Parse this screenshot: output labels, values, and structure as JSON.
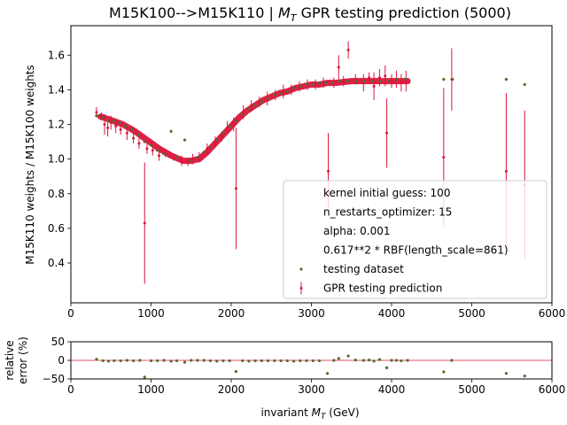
{
  "chart_data": [
    {
      "type": "scatter",
      "panel": "main",
      "title_main": "M15K100-->M15K110 | ",
      "title_math": "M",
      "title_sub": "T",
      "title_tail": " GPR testing prediction (5000)",
      "xlabel": "",
      "ylabel": "M15K110 weights / M15K100 weights",
      "xlim": [
        0,
        6000
      ],
      "ylim": [
        0.17,
        1.77
      ],
      "xticks": [
        0,
        1000,
        2000,
        3000,
        4000,
        5000,
        6000
      ],
      "xtick_labels": [
        "0",
        "1000",
        "2000",
        "3000",
        "4000",
        "5000",
        "6000"
      ],
      "yticks": [
        0.4,
        0.6,
        0.8,
        1.0,
        1.2,
        1.4,
        1.6
      ],
      "ytick_labels": [
        "0.4",
        "0.6",
        "0.8",
        "1.0",
        "1.2",
        "1.4",
        "1.6"
      ],
      "grid": false,
      "legend_position": "lower right",
      "legend": [
        {
          "kind": "text",
          "label": "kernel initial guess: 100"
        },
        {
          "kind": "text",
          "label": "n_restarts_optimizer: 15"
        },
        {
          "kind": "text",
          "label": "alpha: 0.001"
        },
        {
          "kind": "text",
          "label": "0.617**2 * RBF(length_scale=861)"
        },
        {
          "kind": "dot",
          "label": "testing dataset"
        },
        {
          "kind": "errorbar",
          "label": "GPR testing prediction"
        }
      ],
      "series": [
        {
          "name": "GPR testing prediction",
          "color": "#dc143c",
          "style": "errorbar",
          "points": [
            [
              320,
              1.27,
              0.03
            ],
            [
              380,
              1.25,
              0.02
            ],
            [
              420,
              1.2,
              0.06
            ],
            [
              460,
              1.18,
              0.05
            ],
            [
              500,
              1.21,
              0.04
            ],
            [
              560,
              1.19,
              0.04
            ],
            [
              620,
              1.17,
              0.03
            ],
            [
              700,
              1.15,
              0.04
            ],
            [
              780,
              1.12,
              0.03
            ],
            [
              850,
              1.09,
              0.03
            ],
            [
              920,
              0.63,
              0.35
            ],
            [
              950,
              1.06,
              0.03
            ],
            [
              1020,
              1.05,
              0.03
            ],
            [
              1100,
              1.02,
              0.03
            ],
            [
              1180,
              1.03,
              0.02
            ],
            [
              1280,
              1.01,
              0.02
            ],
            [
              1380,
              0.99,
              0.03
            ],
            [
              1460,
              0.98,
              0.02
            ],
            [
              1520,
              1.0,
              0.03
            ],
            [
              1600,
              1.01,
              0.03
            ],
            [
              1700,
              1.06,
              0.03
            ],
            [
              1800,
              1.1,
              0.03
            ],
            [
              1880,
              1.13,
              0.03
            ],
            [
              1950,
              1.18,
              0.04
            ],
            [
              2030,
              1.2,
              0.04
            ],
            [
              2060,
              0.83,
              0.35
            ],
            [
              2150,
              1.27,
              0.04
            ],
            [
              2250,
              1.31,
              0.03
            ],
            [
              2350,
              1.33,
              0.03
            ],
            [
              2450,
              1.35,
              0.04
            ],
            [
              2550,
              1.37,
              0.03
            ],
            [
              2650,
              1.39,
              0.04
            ],
            [
              2750,
              1.4,
              0.03
            ],
            [
              2850,
              1.42,
              0.03
            ],
            [
              2950,
              1.43,
              0.03
            ],
            [
              3050,
              1.43,
              0.03
            ],
            [
              3150,
              1.44,
              0.03
            ],
            [
              3210,
              0.93,
              0.22
            ],
            [
              3280,
              1.44,
              0.03
            ],
            [
              3340,
              1.53,
              0.07
            ],
            [
              3400,
              1.45,
              0.03
            ],
            [
              3460,
              1.63,
              0.05
            ],
            [
              3550,
              1.46,
              0.03
            ],
            [
              3650,
              1.44,
              0.05
            ],
            [
              3720,
              1.47,
              0.03
            ],
            [
              3780,
              1.42,
              0.08
            ],
            [
              3850,
              1.47,
              0.05
            ],
            [
              3920,
              1.48,
              0.06
            ],
            [
              3940,
              1.15,
              0.2
            ],
            [
              4000,
              1.45,
              0.04
            ],
            [
              4060,
              1.46,
              0.05
            ],
            [
              4120,
              1.44,
              0.05
            ],
            [
              4180,
              1.45,
              0.06
            ],
            [
              4650,
              1.01,
              0.4
            ],
            [
              4750,
              1.46,
              0.18
            ],
            [
              5430,
              0.93,
              0.45
            ],
            [
              5660,
              0.85,
              0.43
            ]
          ]
        },
        {
          "name": "testing dataset",
          "color": "#556b2f",
          "style": "dots",
          "points": [
            [
              320,
              1.25
            ],
            [
              400,
              1.24
            ],
            [
              470,
              1.22
            ],
            [
              540,
              1.22
            ],
            [
              610,
              1.21
            ],
            [
              680,
              1.19
            ],
            [
              760,
              1.17
            ],
            [
              840,
              1.14
            ],
            [
              920,
              1.1
            ],
            [
              1000,
              1.08
            ],
            [
              1080,
              1.05
            ],
            [
              1160,
              1.03
            ],
            [
              1250,
              1.16
            ],
            [
              1320,
              1.01
            ],
            [
              1420,
              1.11
            ],
            [
              1500,
              0.99
            ],
            [
              1580,
              1.01
            ],
            [
              1660,
              1.04
            ],
            [
              1740,
              1.07
            ],
            [
              1820,
              1.11
            ],
            [
              1900,
              1.15
            ],
            [
              1980,
              1.19
            ],
            [
              2060,
              1.22
            ],
            [
              2140,
              1.26
            ],
            [
              2220,
              1.29
            ],
            [
              2300,
              1.31
            ],
            [
              2380,
              1.33
            ],
            [
              2460,
              1.35
            ],
            [
              2540,
              1.37
            ],
            [
              2620,
              1.38
            ],
            [
              2700,
              1.39
            ],
            [
              2780,
              1.41
            ],
            [
              2860,
              1.42
            ],
            [
              2940,
              1.43
            ],
            [
              3020,
              1.43
            ],
            [
              3100,
              1.44
            ],
            [
              3180,
              1.44
            ],
            [
              3260,
              1.44
            ],
            [
              3350,
              1.45
            ],
            [
              3450,
              1.45
            ],
            [
              3560,
              1.45
            ],
            [
              3660,
              1.45
            ],
            [
              3760,
              1.45
            ],
            [
              3860,
              1.45
            ],
            [
              3960,
              1.45
            ],
            [
              4060,
              1.46
            ],
            [
              4170,
              1.46
            ],
            [
              4650,
              1.46
            ],
            [
              4760,
              1.46
            ],
            [
              5430,
              1.46
            ],
            [
              5660,
              1.43
            ]
          ]
        }
      ],
      "band": {
        "color": "#dc143c",
        "x": [
          370,
          500,
          650,
          800,
          950,
          1100,
          1250,
          1400,
          1500,
          1600,
          1700,
          1800,
          1900,
          2000,
          2100,
          2200,
          2300,
          2400,
          2500,
          2600,
          2700,
          2800,
          2900,
          3000,
          3100,
          3200,
          3300,
          3400,
          3500,
          3600,
          3700,
          3800,
          3900,
          4000,
          4100,
          4200
        ],
        "y": [
          1.245,
          1.225,
          1.2,
          1.16,
          1.11,
          1.06,
          1.02,
          0.99,
          0.99,
          1.0,
          1.04,
          1.09,
          1.14,
          1.19,
          1.24,
          1.28,
          1.31,
          1.34,
          1.36,
          1.38,
          1.39,
          1.41,
          1.42,
          1.43,
          1.43,
          1.44,
          1.44,
          1.445,
          1.45,
          1.45,
          1.45,
          1.45,
          1.45,
          1.45,
          1.45,
          1.45
        ]
      }
    },
    {
      "type": "scatter",
      "panel": "residual",
      "ylabel_line1": "relative",
      "ylabel_line2": "error (%)",
      "xlabel_main": "invariant ",
      "xlabel_math": "M",
      "xlabel_sub": "T",
      "xlabel_tail": " (GeV)",
      "xlim": [
        0,
        6000
      ],
      "ylim": [
        -50,
        50
      ],
      "xticks": [
        0,
        1000,
        2000,
        3000,
        4000,
        5000,
        6000
      ],
      "xtick_labels": [
        "0",
        "1000",
        "2000",
        "3000",
        "4000",
        "5000",
        "6000"
      ],
      "yticks": [
        -50,
        0,
        50
      ],
      "ytick_labels": [
        "−50",
        "0",
        "50"
      ],
      "reference_line": {
        "y": 0,
        "color": "#dc143c"
      },
      "series": [
        {
          "name": "relative error",
          "color": "#556b2f",
          "points": [
            [
              320,
              3
            ],
            [
              400,
              -1
            ],
            [
              470,
              -2
            ],
            [
              540,
              -1
            ],
            [
              620,
              -1
            ],
            [
              700,
              0
            ],
            [
              780,
              -1
            ],
            [
              860,
              0
            ],
            [
              920,
              -45
            ],
            [
              1000,
              -1
            ],
            [
              1080,
              -1
            ],
            [
              1160,
              0
            ],
            [
              1250,
              -2
            ],
            [
              1320,
              -1
            ],
            [
              1420,
              -5
            ],
            [
              1500,
              0
            ],
            [
              1580,
              0
            ],
            [
              1660,
              0
            ],
            [
              1740,
              -1
            ],
            [
              1820,
              -2
            ],
            [
              1900,
              -1
            ],
            [
              1980,
              -1
            ],
            [
              2060,
              -30
            ],
            [
              2140,
              -1
            ],
            [
              2220,
              -2
            ],
            [
              2300,
              -1
            ],
            [
              2380,
              -1
            ],
            [
              2460,
              -1
            ],
            [
              2540,
              -1
            ],
            [
              2620,
              -1
            ],
            [
              2700,
              -1
            ],
            [
              2780,
              -2
            ],
            [
              2860,
              -1
            ],
            [
              2940,
              -1
            ],
            [
              3020,
              -1
            ],
            [
              3100,
              -1
            ],
            [
              3200,
              -35
            ],
            [
              3280,
              0
            ],
            [
              3340,
              5
            ],
            [
              3460,
              12
            ],
            [
              3550,
              1
            ],
            [
              3650,
              0
            ],
            [
              3720,
              1
            ],
            [
              3780,
              -2
            ],
            [
              3850,
              2
            ],
            [
              3940,
              -20
            ],
            [
              4000,
              0
            ],
            [
              4060,
              0
            ],
            [
              4120,
              -1
            ],
            [
              4200,
              0
            ],
            [
              4650,
              -31
            ],
            [
              4750,
              0
            ],
            [
              5430,
              -35
            ],
            [
              5660,
              -42
            ]
          ]
        }
      ]
    }
  ]
}
